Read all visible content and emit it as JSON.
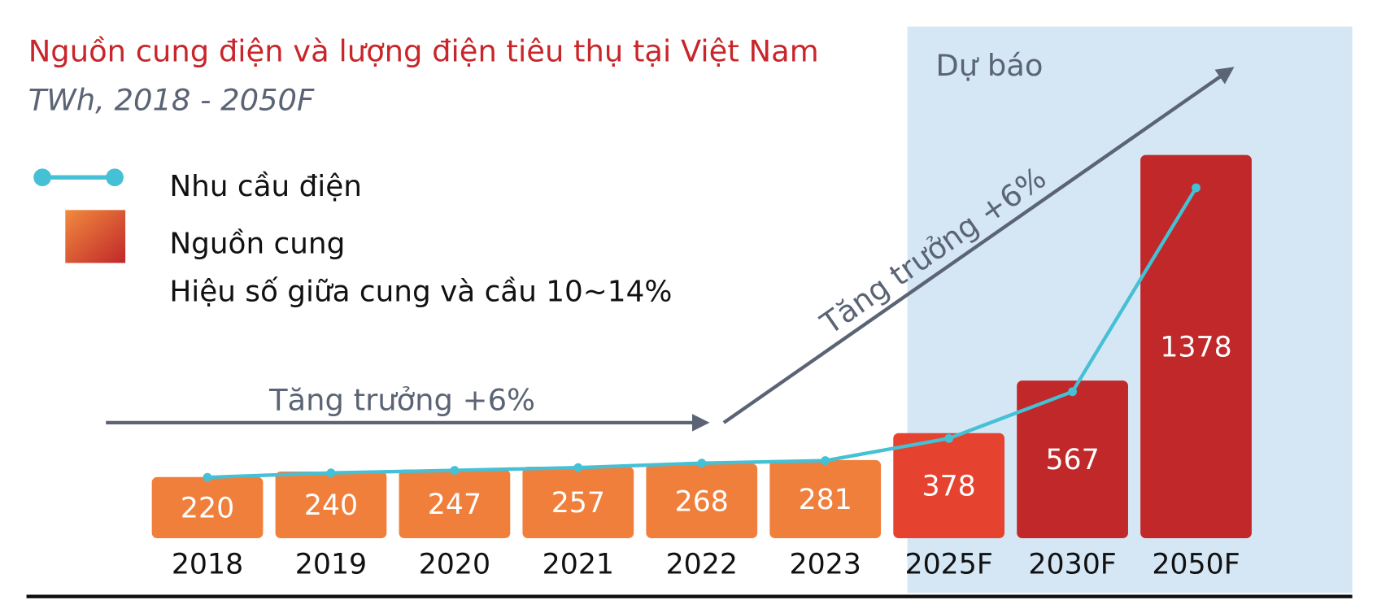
{
  "chart_data": {
    "type": "bar",
    "title": "Nguồn cung điện và lượng điện tiêu thụ tại Việt Nam",
    "subtitle": "TWh, 2018 - 2050F",
    "forecast_label": "Dự báo",
    "note": "Hiệu số giữa cung và cầu 10~14%",
    "annotations": [
      "Tăng trưởng +6%",
      "Tăng trưởng +6%"
    ],
    "categories": [
      "2018",
      "2019",
      "2020",
      "2021",
      "2022",
      "2023",
      "2025F",
      "2030F",
      "2050F"
    ],
    "ylim": [
      0,
      1380
    ],
    "series": [
      {
        "name": "Nhu cầu điện",
        "type": "line",
        "color": "#45c0d4",
        "values": [
          219,
          235,
          244,
          254,
          270,
          279,
          359,
          527,
          1260
        ]
      },
      {
        "name": "Nguồn cung",
        "type": "bar",
        "color": "#f07f3c",
        "colors": [
          "#f07f3c",
          "#f07f3c",
          "#f07f3c",
          "#f07f3c",
          "#f07f3c",
          "#f07f3c",
          "#e5432f",
          "#c0282a",
          "#c0282a"
        ],
        "values": [
          220,
          240,
          247,
          257,
          268,
          281,
          378,
          567,
          1378
        ]
      }
    ]
  }
}
